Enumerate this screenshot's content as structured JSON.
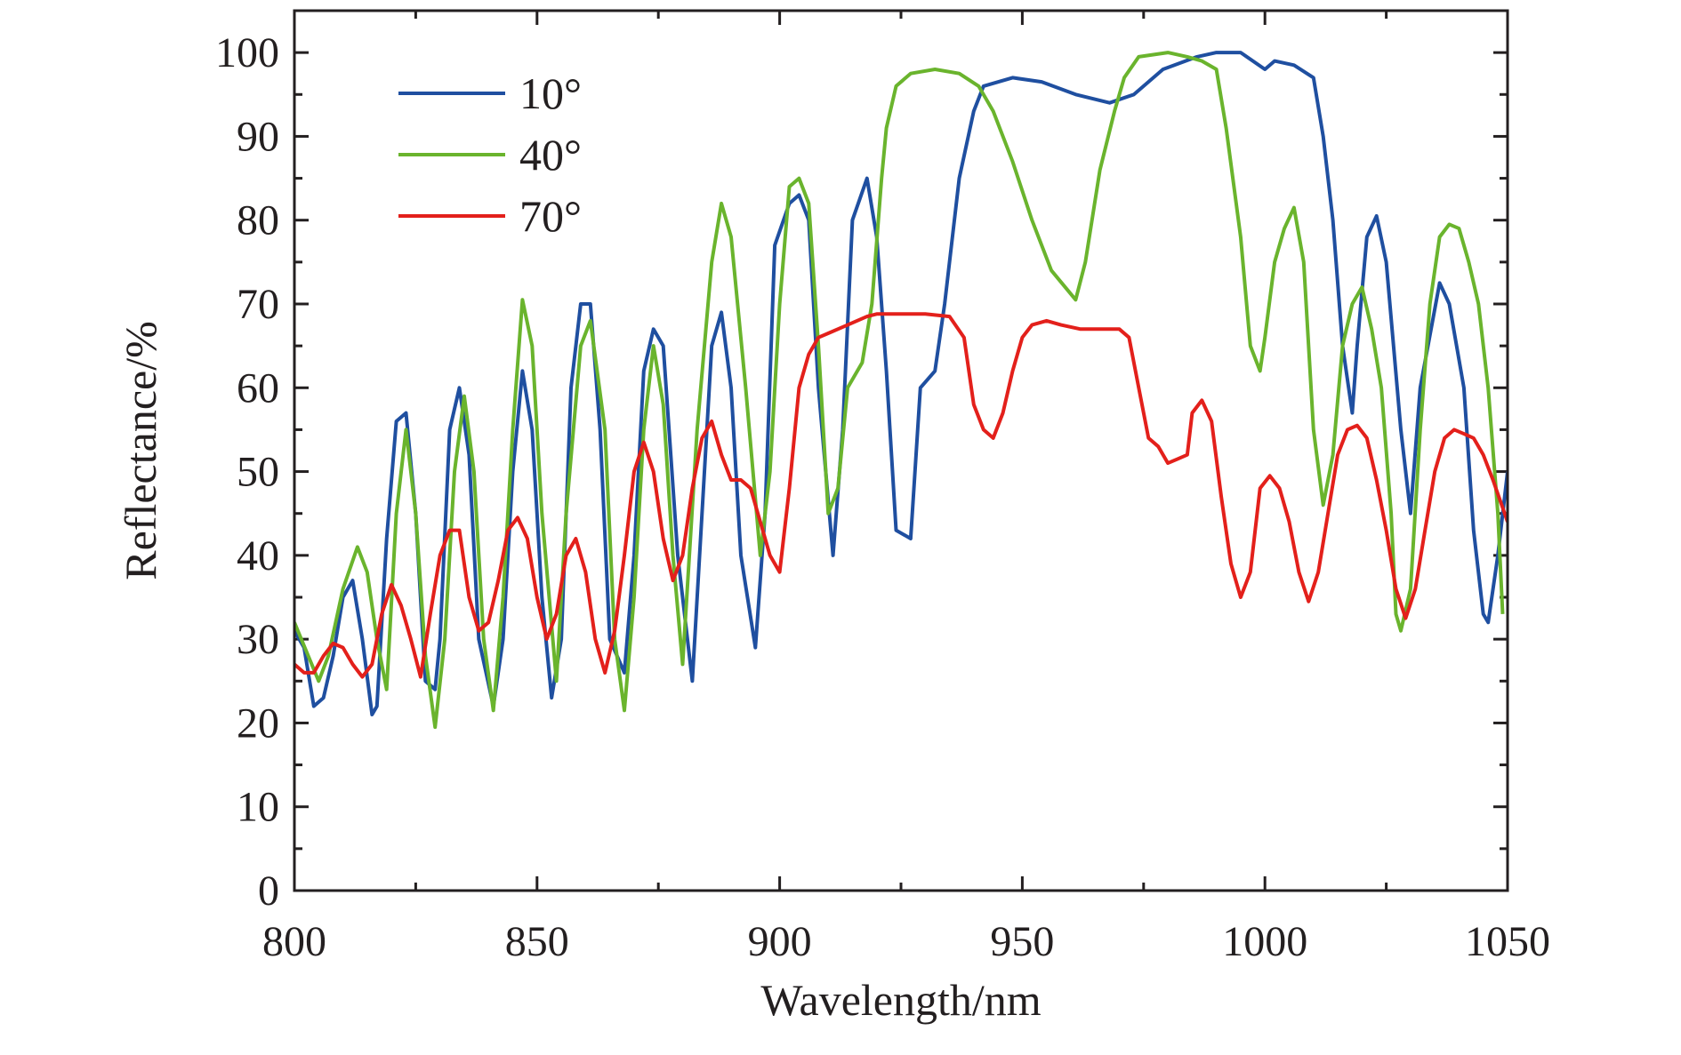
{
  "chart_data": {
    "type": "line",
    "x_label": "Wavelength/nm",
    "y_label": "Reflectance/%",
    "xlim": [
      800,
      1050
    ],
    "ylim": [
      0,
      105
    ],
    "xticks": [
      800,
      850,
      900,
      950,
      1000,
      1050
    ],
    "yticks": [
      0,
      10,
      20,
      30,
      40,
      50,
      60,
      70,
      80,
      90,
      100
    ],
    "legend": "upper left",
    "series": [
      {
        "name": "10°",
        "color": "#1f4fa0",
        "x": [
          800,
          802,
          804,
          806,
          808,
          810,
          812,
          814,
          816,
          817,
          819,
          821,
          823,
          825,
          827,
          829,
          830,
          832,
          834,
          836,
          838,
          841,
          843,
          845,
          847,
          849,
          851,
          853,
          855,
          857,
          859,
          861,
          863,
          865,
          868,
          870,
          872,
          874,
          876,
          879,
          882,
          884,
          886,
          888,
          890,
          892,
          895,
          897,
          899,
          902,
          904,
          906,
          908,
          911,
          913,
          915,
          918,
          920,
          922,
          924,
          927,
          929,
          932,
          934,
          937,
          940,
          942,
          948,
          954,
          961,
          968,
          973,
          979,
          986,
          990,
          995,
          1000,
          1002,
          1006,
          1010,
          1012,
          1014,
          1016,
          1018,
          1019,
          1021,
          1023,
          1025,
          1028,
          1030,
          1032,
          1036,
          1038,
          1041,
          1043,
          1045,
          1046,
          1048,
          1050
        ],
        "values": [
          31,
          29,
          22,
          23,
          28,
          35,
          37,
          30,
          21,
          22,
          42,
          56,
          57,
          45,
          25,
          24,
          30,
          55,
          60,
          52,
          30,
          22,
          30,
          50,
          62,
          55,
          35,
          23,
          30,
          60,
          70,
          70,
          55,
          30,
          26,
          40,
          62,
          67,
          65,
          40,
          25,
          45,
          65,
          69,
          60,
          40,
          29,
          45,
          77,
          82,
          83,
          80,
          60,
          40,
          55,
          80,
          85,
          78,
          62,
          43,
          42,
          60,
          62,
          70,
          85,
          93,
          96,
          97,
          96.5,
          95,
          94,
          95,
          98,
          99.5,
          100,
          100,
          98,
          99,
          98.5,
          97,
          90,
          80,
          65,
          57,
          65,
          78,
          80.5,
          75,
          55,
          45,
          60,
          72.5,
          70,
          60,
          43,
          33,
          32,
          40,
          50
        ]
      },
      {
        "name": "40°",
        "color": "#6ab42d",
        "x": [
          800,
          805,
          807,
          810,
          813,
          815,
          817,
          819,
          821,
          823,
          825,
          827,
          829,
          831,
          833,
          835,
          837,
          839,
          841,
          843,
          845,
          847,
          849,
          851,
          854,
          856,
          859,
          861,
          864,
          866,
          868,
          870,
          872,
          874,
          876,
          878,
          880,
          883,
          886,
          888,
          890,
          893,
          896,
          898,
          900,
          902,
          904,
          906,
          908,
          910,
          912,
          914,
          917,
          919,
          921,
          922,
          924,
          927,
          932,
          937,
          941,
          944,
          948,
          952,
          956,
          961,
          963,
          966,
          969,
          971,
          974,
          980,
          984,
          987,
          990,
          992,
          995,
          997,
          999,
          1000,
          1002,
          1004,
          1006,
          1008,
          1010,
          1012,
          1014,
          1016,
          1018,
          1020,
          1022,
          1024,
          1026,
          1027,
          1028,
          1030,
          1032,
          1034,
          1036,
          1038,
          1040,
          1042,
          1044,
          1046,
          1048,
          1049
        ],
        "values": [
          32,
          25,
          28,
          36,
          41,
          38,
          30,
          24,
          45,
          55,
          45,
          28,
          19.5,
          30,
          50,
          59,
          50,
          30,
          21.5,
          35,
          55,
          70.5,
          65,
          45,
          25,
          45,
          65,
          68,
          55,
          30,
          21.5,
          35,
          55,
          65,
          58,
          40,
          27,
          55,
          75,
          82,
          78,
          60,
          40,
          50,
          70,
          84,
          85,
          82,
          65,
          45,
          48,
          60,
          63,
          70,
          85,
          91,
          96,
          97.5,
          98,
          97.5,
          96,
          93,
          87,
          80,
          74,
          70.5,
          75,
          86,
          93,
          97,
          99.5,
          100,
          99.5,
          99,
          98,
          91,
          78,
          65,
          62,
          66,
          75,
          79,
          81.5,
          75,
          55,
          46,
          52,
          65,
          70,
          72,
          67,
          60,
          45,
          33,
          31,
          36,
          55,
          70,
          78,
          79.5,
          79,
          75,
          70,
          60,
          45,
          33
        ]
      },
      {
        "name": "70°",
        "color": "#e3201b",
        "x": [
          800,
          802,
          804,
          806,
          808,
          810,
          812,
          814,
          816,
          818,
          820,
          822,
          824,
          826,
          828,
          830,
          832,
          834,
          836,
          838,
          840,
          842,
          844,
          846,
          848,
          850,
          852,
          854,
          856,
          858,
          860,
          862,
          864,
          866,
          868,
          870,
          872,
          874,
          876,
          878,
          880,
          882,
          884,
          886,
          888,
          890,
          892,
          894,
          896,
          898,
          900,
          902,
          904,
          906,
          908,
          910,
          914,
          918,
          920,
          925,
          930,
          935,
          938,
          940,
          942,
          944,
          946,
          948,
          950,
          952,
          955,
          958,
          962,
          966,
          970,
          972,
          974,
          976,
          978,
          980,
          982,
          984,
          985,
          987,
          989,
          991,
          993,
          995,
          997,
          999,
          1001,
          1003,
          1005,
          1007,
          1009,
          1011,
          1013,
          1015,
          1017,
          1019,
          1021,
          1023,
          1025,
          1027,
          1029,
          1031,
          1033,
          1035,
          1037,
          1039,
          1041,
          1043,
          1045,
          1047,
          1050
        ],
        "values": [
          27,
          26,
          26,
          28,
          29.5,
          29,
          27,
          25.5,
          27,
          33,
          36.5,
          34,
          30,
          25.5,
          33,
          40,
          43,
          43,
          35,
          31,
          32,
          37,
          43,
          44.5,
          42,
          35,
          30,
          33,
          40,
          42,
          38,
          30,
          26,
          31,
          40,
          50,
          53.5,
          50,
          42,
          37,
          40,
          48,
          54,
          56,
          52,
          49,
          49,
          48,
          44,
          40,
          38,
          48,
          60,
          64,
          66,
          66.5,
          67.5,
          68.5,
          68.8,
          68.8,
          68.8,
          68.5,
          66,
          58,
          55,
          54,
          57,
          62,
          66,
          67.5,
          68,
          67.5,
          67,
          67,
          67,
          66,
          60,
          54,
          53,
          51,
          51.5,
          52,
          57,
          58.5,
          56,
          47,
          39,
          35,
          38,
          48,
          49.5,
          48,
          44,
          38,
          34.5,
          38,
          45,
          52,
          55,
          55.5,
          54,
          49,
          43,
          36,
          32.5,
          36,
          43,
          50,
          54,
          55,
          54.5,
          54,
          52,
          49,
          44
        ]
      }
    ]
  }
}
